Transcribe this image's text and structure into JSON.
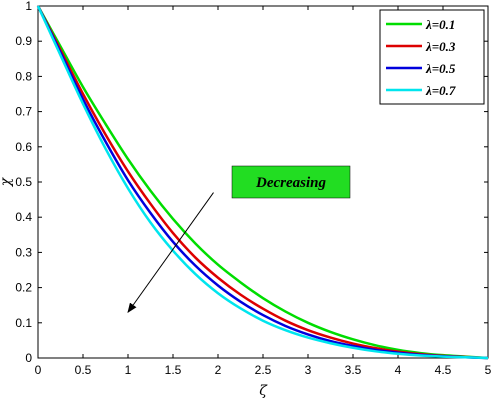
{
  "chart_data": {
    "type": "line",
    "xlabel": "ζ",
    "ylabel": "χ",
    "xlim": [
      0,
      5
    ],
    "ylim": [
      0,
      1
    ],
    "xticks": [
      "0",
      "0.5",
      "1",
      "1.5",
      "2",
      "2.5",
      "3",
      "3.5",
      "4",
      "4.5",
      "5"
    ],
    "yticks": [
      "0",
      "0.1",
      "0.2",
      "0.3",
      "0.4",
      "0.5",
      "0.6",
      "0.7",
      "0.8",
      "0.9",
      "1"
    ],
    "grid": false,
    "legend_position": "top-right",
    "x": [
      0,
      0.25,
      0.5,
      0.75,
      1,
      1.25,
      1.5,
      1.75,
      2,
      2.25,
      2.5,
      2.75,
      3,
      3.25,
      3.5,
      3.75,
      4,
      4.25,
      4.5,
      4.75,
      5
    ],
    "series": [
      {
        "name": "λ=0.1",
        "color": "#00dd00",
        "values": [
          1.0,
          0.885,
          0.77,
          0.665,
          0.565,
          0.475,
          0.395,
          0.325,
          0.265,
          0.215,
          0.17,
          0.132,
          0.1,
          0.074,
          0.053,
          0.036,
          0.023,
          0.014,
          0.008,
          0.004,
          0
        ]
      },
      {
        "name": "λ=0.3",
        "color": "#dd0000",
        "values": [
          1.0,
          0.875,
          0.75,
          0.635,
          0.53,
          0.438,
          0.355,
          0.285,
          0.228,
          0.18,
          0.14,
          0.106,
          0.079,
          0.058,
          0.041,
          0.028,
          0.018,
          0.011,
          0.006,
          0.003,
          0
        ]
      },
      {
        "name": "λ=0.5",
        "color": "#0000dd",
        "values": [
          1.0,
          0.868,
          0.735,
          0.615,
          0.505,
          0.412,
          0.33,
          0.262,
          0.206,
          0.16,
          0.122,
          0.091,
          0.067,
          0.048,
          0.034,
          0.023,
          0.015,
          0.009,
          0.005,
          0.002,
          0
        ]
      },
      {
        "name": "λ=0.7",
        "color": "#00e5ee",
        "values": [
          1.0,
          0.86,
          0.722,
          0.595,
          0.482,
          0.385,
          0.305,
          0.238,
          0.184,
          0.141,
          0.106,
          0.079,
          0.058,
          0.042,
          0.029,
          0.019,
          0.012,
          0.007,
          0.004,
          0.002,
          0
        ]
      }
    ],
    "annotation": {
      "text": "Decreasing",
      "box_color": "#22dd22",
      "arrow_from": [
        1.95,
        0.47
      ],
      "arrow_to": [
        1.0,
        0.13
      ]
    }
  }
}
